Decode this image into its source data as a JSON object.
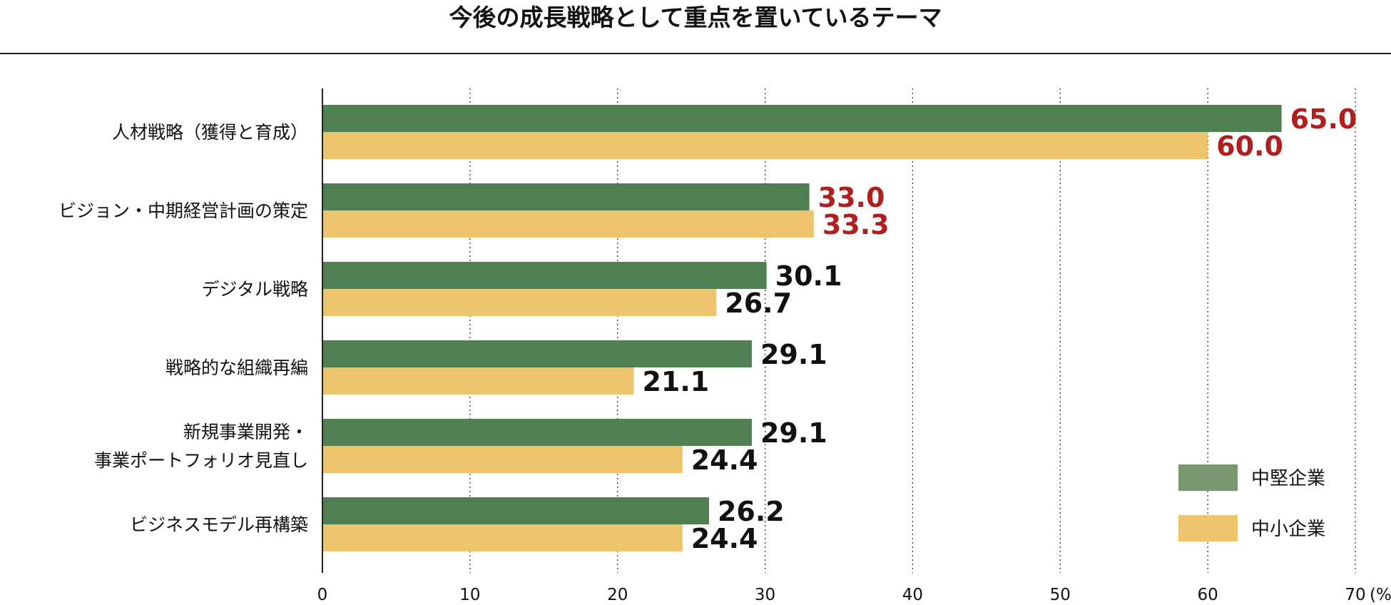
{
  "chart_data": {
    "type": "bar",
    "orientation": "horizontal",
    "title": "今後の成長戦略として重点を置いているテーマ",
    "categories": [
      [
        "人材戦略（獲得と育成）"
      ],
      [
        "ビジョン・中期経営計画の策定"
      ],
      [
        "デジタル戦略"
      ],
      [
        "戦略的な組織再編"
      ],
      [
        "新規事業開発・",
        "事業ポートフォリオ見直し"
      ],
      [
        "ビジネスモデル再構築"
      ]
    ],
    "series": [
      {
        "name": "中堅企業",
        "color": "#4e8052",
        "legend_color": "#78996d",
        "values": [
          65.0,
          33.0,
          30.1,
          29.1,
          29.1,
          26.2
        ],
        "labels": [
          "65.0",
          "33.0",
          "30.1",
          "29.1",
          "29.1",
          "26.2"
        ]
      },
      {
        "name": "中小企業",
        "color": "#edc46b",
        "legend_color": "#edc46b",
        "values": [
          60.0,
          33.3,
          26.7,
          21.1,
          24.4,
          24.4
        ],
        "labels": [
          "60.0",
          "33.3",
          "26.7",
          "21.1",
          "24.4",
          "24.4"
        ]
      }
    ],
    "highlight_categories": [
      0,
      1
    ],
    "highlight_color": "#b01e1e",
    "label_color": "#111111",
    "xlim": [
      0,
      70
    ],
    "xticks": [
      "0",
      "10",
      "20",
      "30",
      "40",
      "50",
      "60",
      "70"
    ],
    "xunit": "(%)",
    "grid": "vertical dotted",
    "legend_position": "bottom-right"
  }
}
